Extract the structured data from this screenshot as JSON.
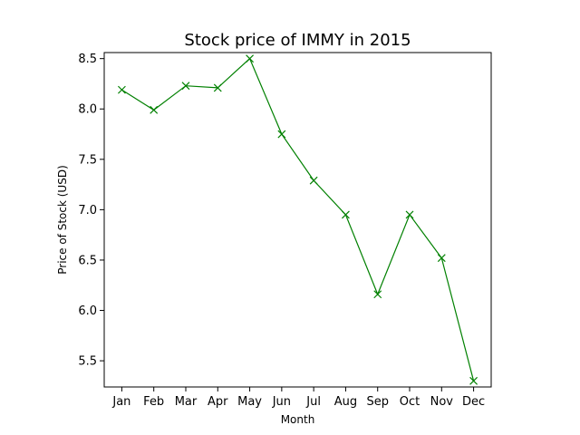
{
  "chart_data": {
    "type": "line",
    "title": "Stock price of IMMY in 2015",
    "xlabel": "Month",
    "ylabel": "Price of Stock (USD)",
    "categories": [
      "Jan",
      "Feb",
      "Mar",
      "Apr",
      "May",
      "Jun",
      "Jul",
      "Aug",
      "Sep",
      "Oct",
      "Nov",
      "Dec"
    ],
    "series": [
      {
        "values": [
          8.19,
          7.99,
          8.23,
          8.21,
          8.5,
          7.75,
          7.29,
          6.95,
          6.16,
          6.95,
          6.52,
          5.3
        ],
        "color": "#008000",
        "marker": "x"
      }
    ],
    "yticks": [
      "5.5",
      "6.0",
      "6.5",
      "7.0",
      "7.5",
      "8.0",
      "8.5"
    ],
    "ylim": [
      5.24,
      8.56
    ],
    "grid": false,
    "legend": "none"
  }
}
